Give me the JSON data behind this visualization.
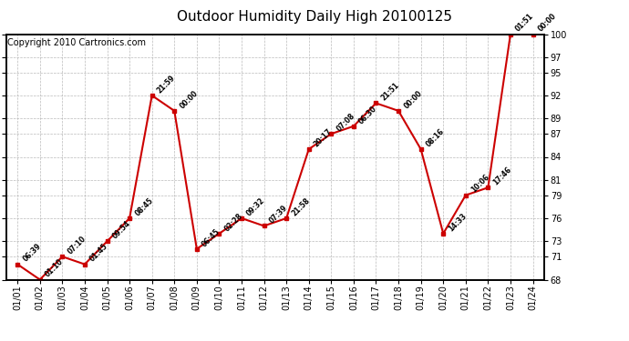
{
  "title": "Outdoor Humidity Daily High 20100125",
  "copyright": "Copyright 2010 Cartronics.com",
  "x_labels": [
    "01/01",
    "01/02",
    "01/03",
    "01/04",
    "01/05",
    "01/06",
    "01/07",
    "01/08",
    "01/09",
    "01/10",
    "01/11",
    "01/12",
    "01/13",
    "01/14",
    "01/15",
    "01/16",
    "01/17",
    "01/18",
    "01/19",
    "01/20",
    "01/21",
    "01/22",
    "01/23",
    "01/24"
  ],
  "y_values": [
    70,
    68,
    71,
    70,
    73,
    76,
    92,
    90,
    72,
    74,
    76,
    75,
    76,
    85,
    87,
    88,
    91,
    90,
    85,
    74,
    79,
    80,
    100,
    100
  ],
  "point_labels": [
    "06:39",
    "01:10",
    "07:10",
    "01:45",
    "09:54",
    "08:45",
    "21:59",
    "00:00",
    "06:45",
    "02:28",
    "09:32",
    "07:39",
    "21:58",
    "20:17",
    "07:08",
    "06:30",
    "21:51",
    "00:00",
    "08:16",
    "14:33",
    "10:06",
    "17:46",
    "01:51",
    "00:00"
  ],
  "ylim_min": 68,
  "ylim_max": 100,
  "yticks": [
    68,
    71,
    73,
    76,
    79,
    81,
    84,
    87,
    89,
    92,
    95,
    97,
    100
  ],
  "line_color": "#cc0000",
  "marker_color": "#cc0000",
  "bg_color": "#ffffff",
  "grid_color": "#aaaaaa",
  "title_fontsize": 11,
  "tick_fontsize": 7,
  "copyright_fontsize": 7,
  "annotation_fontsize": 5.5
}
